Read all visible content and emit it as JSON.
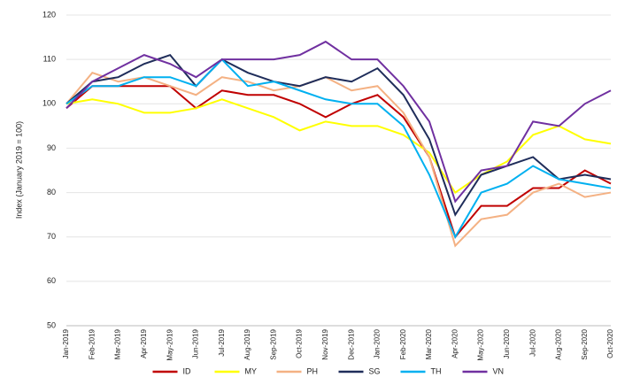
{
  "chart_data": {
    "type": "line",
    "y_label": "Index (January 2019 = 100)",
    "categories": [
      "Jan-2019",
      "Feb-2019",
      "Mar-2019",
      "Apr-2019",
      "May-2019",
      "Jun-2019",
      "Jul-2019",
      "Aug-2019",
      "Sep-2019",
      "Oct-2019",
      "Nov-2019",
      "Dec-2019",
      "Jan-2020",
      "Feb-2020",
      "Mar-2020",
      "Apr-2020",
      "May-2020",
      "Jun-2020",
      "Jul-2020",
      "Aug-2020",
      "Sep-2020",
      "Oct-2020"
    ],
    "series": [
      {
        "name": "ID",
        "color": "#c00000",
        "values": [
          99,
          104,
          104,
          104,
          104,
          99,
          103,
          102,
          102,
          100,
          97,
          100,
          102,
          97,
          88,
          70,
          77,
          77,
          81,
          81,
          85,
          82
        ]
      },
      {
        "name": "MY",
        "color": "#ffff00",
        "values": [
          100,
          101,
          100,
          98,
          98,
          99,
          101,
          99,
          97,
          94,
          96,
          95,
          95,
          93,
          89,
          80,
          84,
          87,
          93,
          95,
          92,
          91
        ]
      },
      {
        "name": "PH",
        "color": "#f4b183",
        "values": [
          100,
          107,
          105,
          106,
          104,
          102,
          106,
          105,
          103,
          104,
          106,
          103,
          104,
          98,
          88,
          68,
          74,
          75,
          80,
          82,
          79,
          80
        ]
      },
      {
        "name": "SG",
        "color": "#1f2d5a",
        "values": [
          100,
          105,
          106,
          109,
          111,
          104,
          110,
          107,
          105,
          104,
          106,
          105,
          108,
          102,
          92,
          75,
          84,
          86,
          88,
          83,
          84,
          83
        ]
      },
      {
        "name": "TH",
        "color": "#00b0f0",
        "values": [
          100,
          104,
          104,
          106,
          106,
          104,
          110,
          104,
          105,
          103,
          101,
          100,
          100,
          95,
          84,
          70,
          80,
          82,
          86,
          83,
          82,
          81
        ]
      },
      {
        "name": "VN",
        "color": "#7030a0",
        "values": [
          99,
          105,
          108,
          111,
          109,
          106,
          110,
          110,
          110,
          111,
          114,
          110,
          110,
          104,
          96,
          78,
          85,
          86,
          96,
          95,
          100,
          103
        ]
      }
    ],
    "ylim": [
      50,
      120
    ],
    "yticks": [
      50,
      60,
      70,
      80,
      90,
      100,
      110,
      120
    ],
    "grid": true,
    "legend": "bottom"
  }
}
